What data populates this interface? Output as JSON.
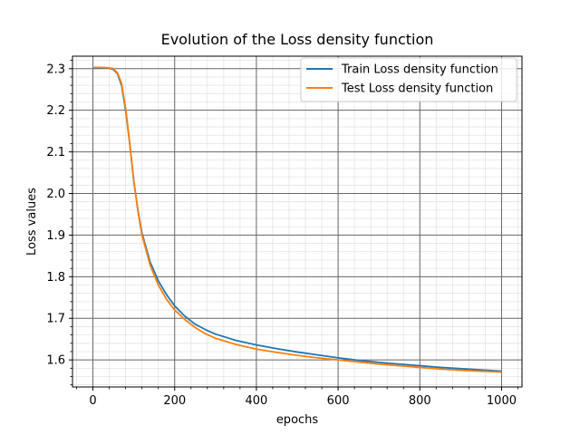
{
  "chart_data": {
    "type": "line",
    "title": "Evolution of the Loss density function",
    "xlabel": "epochs",
    "ylabel": "Loss values",
    "xlim": [
      -50,
      1050
    ],
    "ylim": [
      1.535,
      2.33
    ],
    "x_ticks": [
      0,
      200,
      400,
      600,
      800,
      1000
    ],
    "y_ticks": [
      1.6,
      1.7,
      1.8,
      1.9,
      2.0,
      2.1,
      2.2,
      2.3
    ],
    "x_tick_labels": [
      "0",
      "200",
      "400",
      "600",
      "800",
      "1000"
    ],
    "y_tick_labels": [
      "1.6",
      "1.7",
      "1.8",
      "1.9",
      "2.0",
      "2.1",
      "2.2",
      "2.3"
    ],
    "grid": "major and minor",
    "legend_position": "top-right",
    "series": [
      {
        "name": "Train Loss density function",
        "color": "#1f77b4",
        "x": [
          0,
          20,
          40,
          50,
          60,
          70,
          80,
          90,
          100,
          110,
          120,
          140,
          160,
          180,
          200,
          225,
          250,
          275,
          300,
          350,
          400,
          450,
          500,
          550,
          600,
          650,
          700,
          750,
          800,
          850,
          900,
          950,
          1000
        ],
        "y": [
          2.302,
          2.302,
          2.301,
          2.298,
          2.288,
          2.26,
          2.2,
          2.12,
          2.03,
          1.96,
          1.905,
          1.835,
          1.79,
          1.757,
          1.73,
          1.705,
          1.686,
          1.673,
          1.662,
          1.647,
          1.636,
          1.627,
          1.619,
          1.612,
          1.605,
          1.599,
          1.594,
          1.59,
          1.586,
          1.582,
          1.579,
          1.576,
          1.573
        ]
      },
      {
        "name": "Test Loss density function",
        "color": "#ff7f0e",
        "x": [
          0,
          20,
          40,
          50,
          60,
          70,
          80,
          90,
          100,
          110,
          120,
          140,
          160,
          180,
          200,
          225,
          250,
          275,
          300,
          350,
          400,
          450,
          500,
          550,
          600,
          650,
          700,
          750,
          800,
          850,
          900,
          950,
          1000
        ],
        "y": [
          2.303,
          2.303,
          2.302,
          2.3,
          2.29,
          2.265,
          2.205,
          2.122,
          2.03,
          1.958,
          1.9,
          1.828,
          1.78,
          1.746,
          1.72,
          1.697,
          1.678,
          1.663,
          1.652,
          1.637,
          1.626,
          1.618,
          1.611,
          1.605,
          1.6,
          1.595,
          1.59,
          1.586,
          1.582,
          1.578,
          1.575,
          1.573,
          1.571
        ]
      }
    ]
  }
}
